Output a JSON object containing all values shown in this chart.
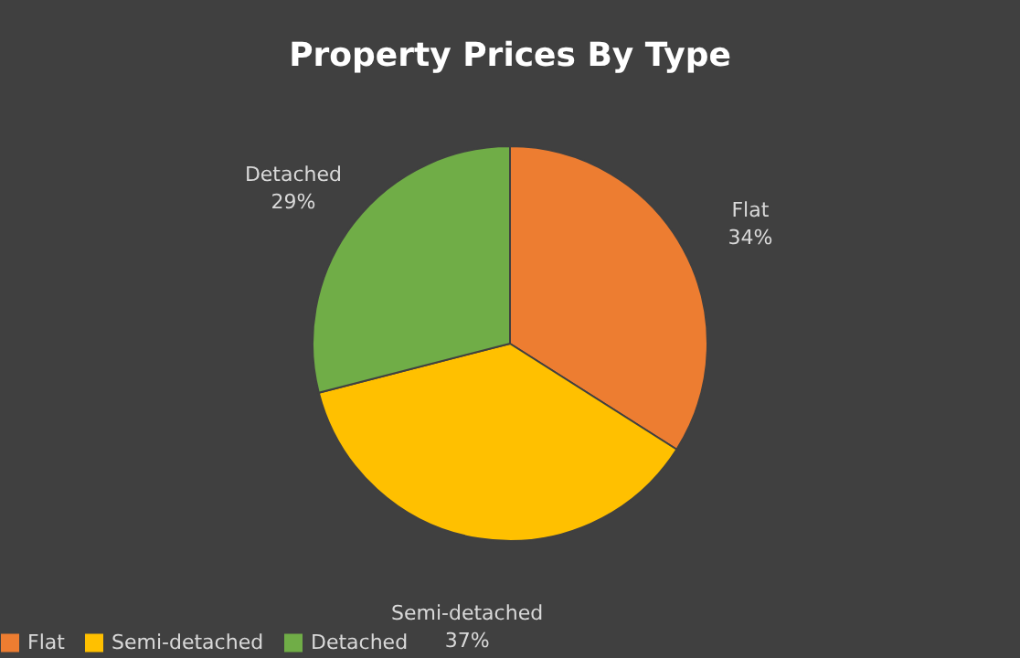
{
  "chart_data": {
    "type": "pie",
    "title": "Property Prices By Type",
    "categories": [
      "Flat",
      "Semi-detached",
      "Detached"
    ],
    "values": [
      34,
      37,
      29
    ],
    "value_labels": [
      "34%",
      "37%",
      "29%"
    ],
    "colors": [
      "#ed7d31",
      "#ffc000",
      "#70ad47"
    ],
    "legend": "bottom"
  }
}
